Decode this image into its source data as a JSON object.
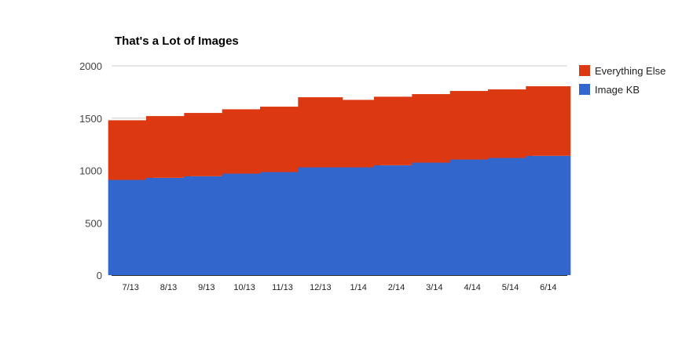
{
  "chart_data": {
    "type": "bar",
    "stacked": true,
    "title": "That's a Lot of Images",
    "xlabel": "",
    "ylabel": "",
    "categories": [
      "7/13",
      "8/13",
      "9/13",
      "10/13",
      "11/13",
      "12/13",
      "1/14",
      "2/14",
      "3/14",
      "4/14",
      "5/14",
      "6/14"
    ],
    "series": [
      {
        "name": "Image KB",
        "color": "#3366cc",
        "values": [
          910,
          930,
          945,
          970,
          985,
          1030,
          1030,
          1050,
          1075,
          1105,
          1120,
          1140
        ]
      },
      {
        "name": "Everything Else",
        "color": "#dc3912",
        "values": [
          570,
          590,
          605,
          615,
          625,
          670,
          645,
          655,
          655,
          655,
          655,
          665
        ]
      }
    ],
    "ylim": [
      0,
      2000
    ],
    "yticks": [
      "0",
      "500",
      "1000",
      "1500",
      "2000"
    ],
    "grid": true,
    "legend": "right"
  }
}
